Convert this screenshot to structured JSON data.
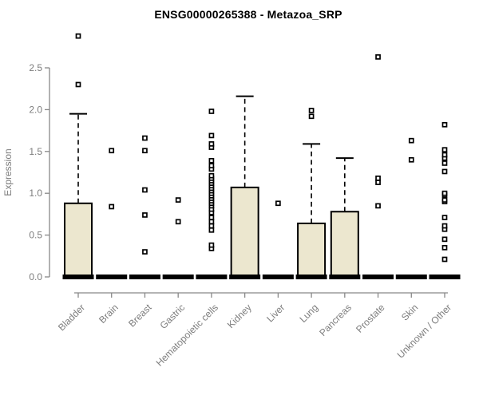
{
  "title": "ENSG00000265388 - Metazoa_SRP",
  "chart_data": {
    "type": "boxplot",
    "title": "ENSG00000265388 - Metazoa_SRP",
    "xlabel": "",
    "ylabel": "Expression",
    "ylim": [
      0,
      2.95
    ],
    "yticks": [
      0.0,
      0.5,
      1.0,
      1.5,
      2.0,
      2.5
    ],
    "grid": false,
    "legend": "none",
    "colors": {
      "box_fill": "#ece7cf",
      "box_border": "#000000",
      "median": "#000000",
      "whisker": "#000000",
      "outlier_stroke": "#000000",
      "outlier_fill": "#ffffff",
      "axis": "#888888",
      "axis_text": "#7d7d7d",
      "title_text": "#000000",
      "background": "#ffffff"
    },
    "categories": [
      "Bladder",
      "Brain",
      "Breast",
      "Gastric",
      "Hematopoietic cells",
      "Kidney",
      "Liver",
      "Lung",
      "Pancreas",
      "Prostate",
      "Skin",
      "Unknown / Other"
    ],
    "series": [
      {
        "category": "Bladder",
        "whisker_low": 0,
        "q1": 0,
        "median": 0,
        "q3": 0.88,
        "whisker_high": 1.95,
        "outliers": [
          2.3,
          2.88
        ]
      },
      {
        "category": "Brain",
        "whisker_low": 0,
        "q1": 0,
        "median": 0,
        "q3": 0,
        "whisker_high": 0,
        "outliers": [
          0.84,
          1.51
        ]
      },
      {
        "category": "Breast",
        "whisker_low": 0,
        "q1": 0,
        "median": 0,
        "q3": 0,
        "whisker_high": 0,
        "outliers": [
          0.3,
          0.74,
          1.04,
          1.51,
          1.66
        ]
      },
      {
        "category": "Gastric",
        "whisker_low": 0,
        "q1": 0,
        "median": 0,
        "q3": 0,
        "whisker_high": 0,
        "outliers": [
          0.66,
          0.92
        ]
      },
      {
        "category": "Hematopoietic cells",
        "whisker_low": 0,
        "q1": 0,
        "median": 0,
        "q3": 0,
        "whisker_high": 0,
        "outliers": [
          0.34,
          0.38,
          0.56,
          0.61,
          0.66,
          0.71,
          0.77,
          0.81,
          0.85,
          0.88,
          0.91,
          0.94,
          0.97,
          1.0,
          1.03,
          1.06,
          1.09,
          1.12,
          1.15,
          1.18,
          1.21,
          1.29,
          1.33,
          1.39,
          1.55,
          1.59,
          1.69,
          1.98
        ]
      },
      {
        "category": "Kidney",
        "whisker_low": 0,
        "q1": 0,
        "median": 0,
        "q3": 1.07,
        "whisker_high": 2.16,
        "outliers": []
      },
      {
        "category": "Liver",
        "whisker_low": 0,
        "q1": 0,
        "median": 0,
        "q3": 0,
        "whisker_high": 0,
        "outliers": [
          0.88
        ]
      },
      {
        "category": "Lung",
        "whisker_low": 0,
        "q1": 0,
        "median": 0,
        "q3": 0.64,
        "whisker_high": 1.59,
        "outliers": [
          1.92,
          1.99
        ]
      },
      {
        "category": "Pancreas",
        "whisker_low": 0,
        "q1": 0,
        "median": 0,
        "q3": 0.78,
        "whisker_high": 1.42,
        "outliers": []
      },
      {
        "category": "Prostate",
        "whisker_low": 0,
        "q1": 0,
        "median": 0,
        "q3": 0,
        "whisker_high": 0,
        "outliers": [
          0.85,
          1.13,
          1.18,
          2.63
        ]
      },
      {
        "category": "Skin",
        "whisker_low": 0,
        "q1": 0,
        "median": 0,
        "q3": 0,
        "whisker_high": 0,
        "outliers": [
          1.4,
          1.63
        ]
      },
      {
        "category": "Unknown / Other",
        "whisker_low": 0,
        "q1": 0,
        "median": 0,
        "q3": 0,
        "whisker_high": 0,
        "outliers": [
          0.21,
          0.35,
          0.45,
          0.57,
          0.61,
          0.71,
          0.9,
          0.92,
          0.98,
          1.0,
          1.26,
          1.36,
          1.42,
          1.46,
          1.52,
          1.82
        ]
      }
    ]
  }
}
